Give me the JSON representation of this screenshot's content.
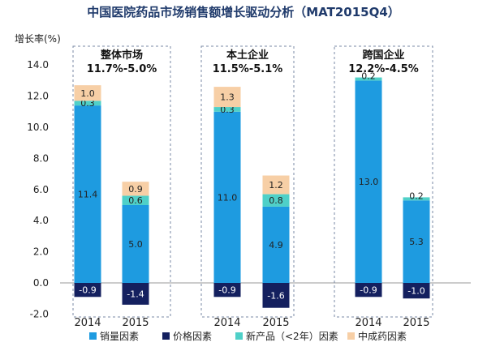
{
  "chart_data": {
    "type": "bar",
    "stacked": true,
    "title": "中国医院药品市场销售额增长驱动分析（MAT2015Q4）",
    "ylabel": "增长率(%)",
    "ylim": [
      -2.0,
      14.0
    ],
    "yticks": [
      "-2.0",
      "0.0",
      "2.0",
      "4.0",
      "6.0",
      "8.0",
      "10.0",
      "12.0",
      "14.0"
    ],
    "groups": [
      {
        "name": "整体市场",
        "subtitle": "11.7%-5.0%"
      },
      {
        "name": "本土企业",
        "subtitle": "11.5%-5.1%"
      },
      {
        "name": "跨国企业",
        "subtitle": "12.2%-4.5%"
      }
    ],
    "categories": [
      "2014",
      "2015",
      "2014",
      "2015",
      "2014",
      "2015"
    ],
    "series": [
      {
        "name": "销量因素",
        "color": "#1e9be0",
        "values": [
          11.4,
          5.0,
          11.0,
          4.9,
          13.0,
          5.3
        ],
        "labels": [
          "11.4",
          "5.0",
          "11.0",
          "4.9",
          "13.0",
          "5.3"
        ]
      },
      {
        "name": "价格因素",
        "color": "#14205f",
        "values": [
          -0.9,
          -1.4,
          -0.9,
          -1.6,
          -0.9,
          -1.0
        ],
        "labels": [
          "-0.9",
          "-1.4",
          "-0.9",
          "-1.6",
          "-0.9",
          "-1.0"
        ]
      },
      {
        "name": "新产品（<2年）因素",
        "color": "#4fd0c8",
        "values": [
          0.3,
          0.6,
          0.3,
          0.8,
          0.2,
          0.2
        ],
        "labels": [
          "0.3",
          "0.6",
          "0.3",
          "0.8",
          "0.2",
          "0.2"
        ]
      },
      {
        "name": "中成药因素",
        "color": "#f7cfa6",
        "values": [
          1.0,
          0.9,
          1.3,
          1.2,
          0.0,
          0.0
        ],
        "labels": [
          "1.0",
          "0.9",
          "1.3",
          "1.2",
          "",
          ""
        ]
      }
    ],
    "grid": false,
    "legend": "bottom"
  }
}
